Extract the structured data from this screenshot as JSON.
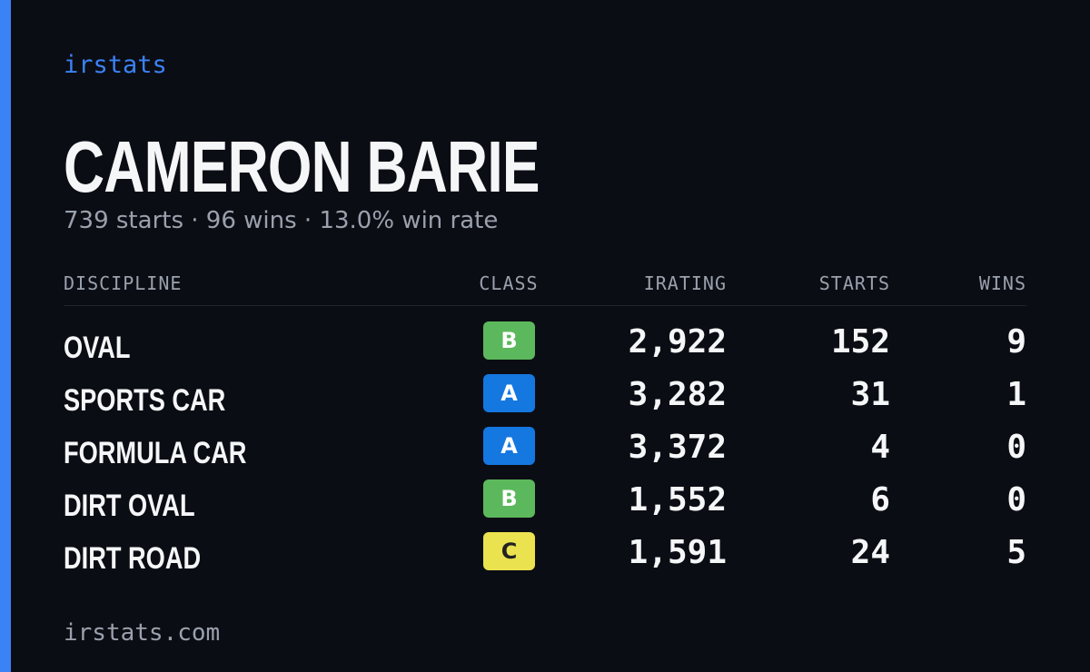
{
  "brand": "irstats",
  "name": "CAMERON BARIE",
  "summary": "739 starts · 96 wins · 13.0% win rate",
  "table": {
    "headers": [
      "DISCIPLINE",
      "CLASS",
      "IRATING",
      "STARTS",
      "WINS"
    ],
    "rows": [
      [
        "OVAL",
        "B",
        "2,922",
        "152",
        "9"
      ],
      [
        "SPORTS CAR",
        "A",
        "3,282",
        "31",
        "1"
      ],
      [
        "FORMULA CAR",
        "A",
        "3,372",
        "4",
        "0"
      ],
      [
        "DIRT OVAL",
        "B",
        "1,552",
        "6",
        "0"
      ],
      [
        "DIRT ROAD",
        "C",
        "1,591",
        "24",
        "5"
      ]
    ],
    "class_colors": [
      "#5cb85c",
      "#1577e0",
      "#1577e0",
      "#5cb85c",
      "#ebe24f"
    ]
  },
  "footer": "irstats.com"
}
